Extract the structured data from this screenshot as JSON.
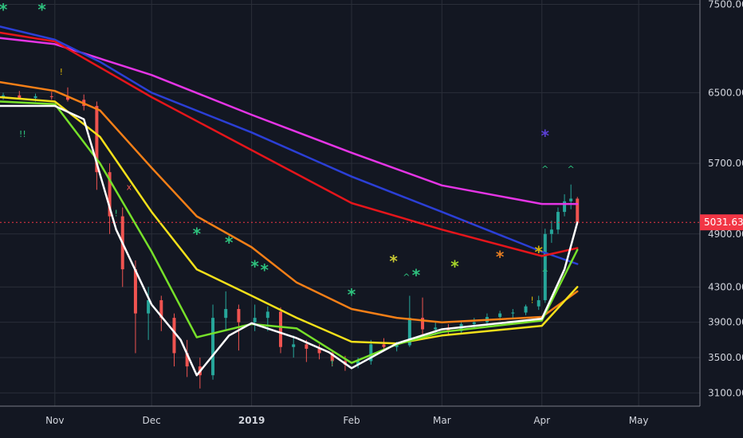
{
  "chart_data": {
    "type": "line",
    "title": "",
    "y_axis": {
      "min": 2950,
      "max": 7550,
      "tick_labels": [
        "7500.00",
        "6500.00",
        "5700.00",
        "4900.00",
        "4300.00",
        "3900.00",
        "3500.00",
        "3100.00"
      ],
      "ticks": [
        7500,
        6500,
        5700,
        4900,
        4300,
        3900,
        3500,
        3100
      ],
      "position": "right"
    },
    "x_axis": {
      "start": "2018-10-15",
      "end": "2019-05-20",
      "tick_labels": [
        {
          "label": "Nov",
          "date": "2018-11-01",
          "bold": false
        },
        {
          "label": "Dec",
          "date": "2018-12-01",
          "bold": false
        },
        {
          "label": "2019",
          "date": "2019-01-01",
          "bold": true
        },
        {
          "label": "Feb",
          "date": "2019-02-01",
          "bold": false
        },
        {
          "label": "Mar",
          "date": "2019-03-01",
          "bold": false
        },
        {
          "label": "Apr",
          "date": "2019-04-01",
          "bold": false
        },
        {
          "label": "May",
          "date": "2019-05-01",
          "bold": false
        }
      ]
    },
    "grid": true,
    "current_price": {
      "value": 5031.63,
      "label": "5031.63",
      "color": "#f23645"
    },
    "colors": {
      "background": "#131722",
      "grid": "#2a2e39",
      "axis_text": "#d1d4dc",
      "candle_up": "#26a69a",
      "candle_down": "#ef5350"
    },
    "series": [
      {
        "color": "#e535e5",
        "points": [
          [
            "2018-10-15",
            7120
          ],
          [
            "2018-11-01",
            7050
          ],
          [
            "2018-12-01",
            6700
          ],
          [
            "2019-01-01",
            6250
          ],
          [
            "2019-02-01",
            5820
          ],
          [
            "2019-03-01",
            5450
          ],
          [
            "2019-04-01",
            5240
          ],
          [
            "2019-04-12",
            5240
          ]
        ]
      },
      {
        "color": "#2b3fd6",
        "points": [
          [
            "2018-10-15",
            7250
          ],
          [
            "2018-11-01",
            7100
          ],
          [
            "2018-11-15",
            6850
          ],
          [
            "2018-12-01",
            6500
          ],
          [
            "2019-01-01",
            6050
          ],
          [
            "2019-02-01",
            5550
          ],
          [
            "2019-03-01",
            5150
          ],
          [
            "2019-04-01",
            4700
          ],
          [
            "2019-04-12",
            4560
          ]
        ]
      },
      {
        "color": "#e5151b",
        "points": [
          [
            "2018-10-15",
            7180
          ],
          [
            "2018-11-01",
            7080
          ],
          [
            "2018-12-01",
            6450
          ],
          [
            "2019-01-01",
            5850
          ],
          [
            "2019-02-01",
            5250
          ],
          [
            "2019-03-01",
            4950
          ],
          [
            "2019-04-01",
            4650
          ],
          [
            "2019-04-12",
            4740
          ]
        ]
      },
      {
        "color": "#f57f17",
        "points": [
          [
            "2018-10-15",
            6620
          ],
          [
            "2018-11-01",
            6520
          ],
          [
            "2018-11-15",
            6300
          ],
          [
            "2018-12-01",
            5650
          ],
          [
            "2018-12-15",
            5100
          ],
          [
            "2019-01-01",
            4750
          ],
          [
            "2019-01-15",
            4350
          ],
          [
            "2019-02-01",
            4050
          ],
          [
            "2019-02-15",
            3950
          ],
          [
            "2019-03-01",
            3900
          ],
          [
            "2019-04-01",
            3960
          ],
          [
            "2019-04-12",
            4250
          ]
        ]
      },
      {
        "color": "#f4e01a",
        "points": [
          [
            "2018-10-15",
            6450
          ],
          [
            "2018-11-01",
            6400
          ],
          [
            "2018-11-15",
            6000
          ],
          [
            "2018-12-01",
            5150
          ],
          [
            "2018-12-15",
            4500
          ],
          [
            "2019-01-01",
            4200
          ],
          [
            "2019-01-15",
            3950
          ],
          [
            "2019-02-01",
            3680
          ],
          [
            "2019-02-15",
            3660
          ],
          [
            "2019-03-01",
            3750
          ],
          [
            "2019-04-01",
            3860
          ],
          [
            "2019-04-12",
            4300
          ]
        ]
      },
      {
        "color": "#76e02a",
        "points": [
          [
            "2018-10-15",
            6400
          ],
          [
            "2018-11-01",
            6370
          ],
          [
            "2018-11-15",
            5700
          ],
          [
            "2018-12-01",
            4700
          ],
          [
            "2018-12-15",
            3730
          ],
          [
            "2019-01-01",
            3880
          ],
          [
            "2019-01-15",
            3830
          ],
          [
            "2019-02-01",
            3440
          ],
          [
            "2019-02-15",
            3650
          ],
          [
            "2019-03-01",
            3790
          ],
          [
            "2019-04-01",
            3920
          ],
          [
            "2019-04-12",
            4720
          ]
        ]
      },
      {
        "color": "#ffffff",
        "points": [
          [
            "2018-10-15",
            6350
          ],
          [
            "2018-11-01",
            6350
          ],
          [
            "2018-11-10",
            6200
          ],
          [
            "2018-11-20",
            4950
          ],
          [
            "2018-12-01",
            4100
          ],
          [
            "2018-12-10",
            3700
          ],
          [
            "2018-12-15",
            3300
          ],
          [
            "2018-12-25",
            3750
          ],
          [
            "2019-01-01",
            3890
          ],
          [
            "2019-01-15",
            3720
          ],
          [
            "2019-01-25",
            3560
          ],
          [
            "2019-02-01",
            3380
          ],
          [
            "2019-02-15",
            3660
          ],
          [
            "2019-03-01",
            3820
          ],
          [
            "2019-04-01",
            3940
          ],
          [
            "2019-04-08",
            4500
          ],
          [
            "2019-04-12",
            5030
          ]
        ]
      }
    ],
    "candles": [
      [
        "2018-10-16",
        6450,
        6500,
        6420,
        6470
      ],
      [
        "2018-10-21",
        6470,
        6520,
        6430,
        6440
      ],
      [
        "2018-10-26",
        6440,
        6490,
        6400,
        6460
      ],
      [
        "2018-10-31",
        6460,
        6510,
        6420,
        6450
      ],
      [
        "2018-11-05",
        6450,
        6560,
        6400,
        6420
      ],
      [
        "2018-11-10",
        6420,
        6480,
        6300,
        6350
      ],
      [
        "2018-11-14",
        6350,
        6400,
        5400,
        5600
      ],
      [
        "2018-11-18",
        5600,
        5700,
        4900,
        5100
      ],
      [
        "2018-11-22",
        5100,
        5200,
        4300,
        4500
      ],
      [
        "2018-11-26",
        4500,
        4600,
        3550,
        4000
      ],
      [
        "2018-11-30",
        4000,
        4300,
        3700,
        4150
      ],
      [
        "2018-12-04",
        4150,
        4200,
        3800,
        3950
      ],
      [
        "2018-12-08",
        3950,
        4000,
        3400,
        3550
      ],
      [
        "2018-12-12",
        3550,
        3700,
        3280,
        3400
      ],
      [
        "2018-12-16",
        3400,
        3500,
        3150,
        3300
      ],
      [
        "2018-12-20",
        3300,
        4100,
        3250,
        3950
      ],
      [
        "2018-12-24",
        3950,
        4250,
        3800,
        4050
      ],
      [
        "2018-12-28",
        4050,
        4100,
        3580,
        3900
      ],
      [
        "2019-01-02",
        3900,
        4100,
        3800,
        3950
      ],
      [
        "2019-01-06",
        3950,
        4080,
        3800,
        4020
      ],
      [
        "2019-01-10",
        4020,
        4070,
        3550,
        3620
      ],
      [
        "2019-01-14",
        3620,
        3750,
        3500,
        3650
      ],
      [
        "2019-01-18",
        3650,
        3700,
        3450,
        3600
      ],
      [
        "2019-01-22",
        3600,
        3650,
        3480,
        3550
      ],
      [
        "2019-01-26",
        3550,
        3580,
        3400,
        3460
      ],
      [
        "2019-01-30",
        3460,
        3520,
        3350,
        3420
      ],
      [
        "2019-02-03",
        3420,
        3500,
        3380,
        3460
      ],
      [
        "2019-02-07",
        3460,
        3700,
        3420,
        3650
      ],
      [
        "2019-02-11",
        3650,
        3720,
        3580,
        3620
      ],
      [
        "2019-02-15",
        3620,
        3680,
        3570,
        3640
      ],
      [
        "2019-02-19",
        3640,
        4200,
        3620,
        3950
      ],
      [
        "2019-02-23",
        3950,
        4180,
        3750,
        3820
      ],
      [
        "2019-02-27",
        3820,
        3900,
        3780,
        3840
      ],
      [
        "2019-03-03",
        3840,
        3880,
        3760,
        3800
      ],
      [
        "2019-03-07",
        3800,
        3920,
        3780,
        3880
      ],
      [
        "2019-03-11",
        3880,
        3950,
        3840,
        3900
      ],
      [
        "2019-03-15",
        3900,
        4000,
        3860,
        3960
      ],
      [
        "2019-03-19",
        3960,
        4030,
        3920,
        4000
      ],
      [
        "2019-03-23",
        4000,
        4050,
        3950,
        4010
      ],
      [
        "2019-03-27",
        4010,
        4100,
        3980,
        4080
      ],
      [
        "2019-03-31",
        4080,
        4200,
        4040,
        4150
      ],
      [
        "2019-04-02",
        4150,
        4960,
        4120,
        4900
      ],
      [
        "2019-04-04",
        4900,
        5050,
        4800,
        4950
      ],
      [
        "2019-04-06",
        4950,
        5200,
        4900,
        5150
      ],
      [
        "2019-04-08",
        5150,
        5350,
        5100,
        5270
      ],
      [
        "2019-04-10",
        5270,
        5460,
        5180,
        5300
      ],
      [
        "2019-04-12",
        5300,
        5320,
        5000,
        5031.63
      ]
    ],
    "markers": [
      {
        "date": "2018-10-16",
        "value": 7380,
        "text": "*",
        "color": "#2ec27e"
      },
      {
        "date": "2018-10-28",
        "value": 7380,
        "text": "*",
        "color": "#2ec27e"
      },
      {
        "date": "2018-12-15",
        "value": 4840,
        "text": "*",
        "color": "#2ec27e"
      },
      {
        "date": "2018-12-25",
        "value": 4740,
        "text": "*",
        "color": "#2ec27e"
      },
      {
        "date": "2019-01-02",
        "value": 4470,
        "text": "*",
        "color": "#2ec27e"
      },
      {
        "date": "2019-01-05",
        "value": 4430,
        "text": "*",
        "color": "#2ec27e"
      },
      {
        "date": "2019-02-01",
        "value": 4150,
        "text": "*",
        "color": "#2ec27e"
      },
      {
        "date": "2019-02-14",
        "value": 4530,
        "text": "*",
        "color": "#c9c934"
      },
      {
        "date": "2019-02-21",
        "value": 4370,
        "text": "*",
        "color": "#2ec27e"
      },
      {
        "date": "2019-03-05",
        "value": 4470,
        "text": "*",
        "color": "#a6d62a"
      },
      {
        "date": "2019-03-19",
        "value": 4580,
        "text": "*",
        "color": "#e67e22"
      },
      {
        "date": "2019-03-31",
        "value": 4630,
        "text": "*",
        "color": "#d4b106"
      },
      {
        "date": "2019-04-02",
        "value": 5950,
        "text": "*",
        "color": "#5b3fd6"
      }
    ],
    "small_markers": [
      {
        "date": "2018-10-22",
        "value": 6000,
        "text": "!!",
        "color": "#2ec27e"
      },
      {
        "date": "2018-11-03",
        "value": 6700,
        "text": "!",
        "color": "#d4b106"
      },
      {
        "date": "2018-11-24",
        "value": 5400,
        "text": "x",
        "color": "#ef5350"
      },
      {
        "date": "2018-11-20",
        "value": 5100,
        "text": "!",
        "color": "#2ec27e"
      },
      {
        "date": "2019-01-26",
        "value": 3400,
        "text": "!",
        "color": "#2ec27e"
      },
      {
        "date": "2019-02-18",
        "value": 4380,
        "text": "^",
        "color": "#2ec27e"
      },
      {
        "date": "2019-03-29",
        "value": 4120,
        "text": "!",
        "color": "#d4b106"
      },
      {
        "date": "2019-04-02",
        "value": 5600,
        "text": "^",
        "color": "#2ec27e"
      },
      {
        "date": "2019-04-02",
        "value": 4430,
        "text": "^",
        "color": "#2ec27e"
      },
      {
        "date": "2019-04-10",
        "value": 5600,
        "text": "^",
        "color": "#2ec27e"
      }
    ]
  }
}
